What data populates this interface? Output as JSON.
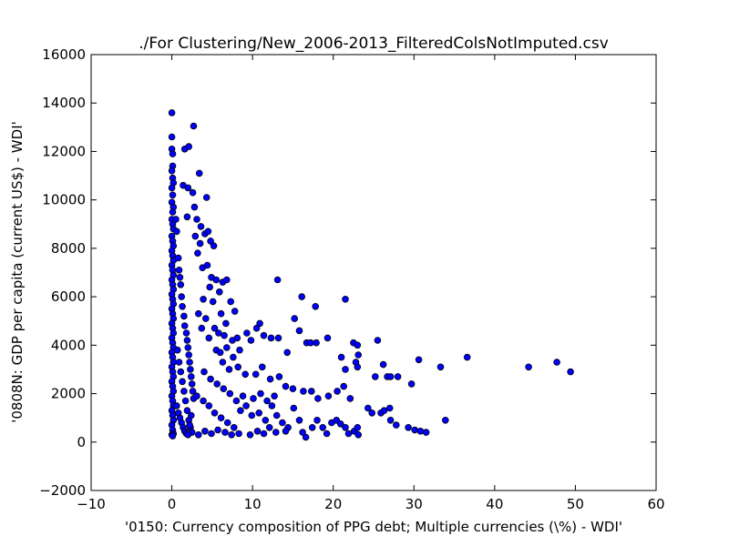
{
  "chart_data": {
    "type": "scatter",
    "title": "./For Clustering/New_2006-2013_FilteredColsNotImputed.csv",
    "xlabel": "'0150: Currency composition of PPG debt; Multiple currencies  (\\%) - WDI'",
    "ylabel": "'0808N: GDP per capita  (current US$) - WDI'",
    "xlim": [
      -10,
      60
    ],
    "ylim": [
      -2000,
      16000
    ],
    "xticks": [
      -10,
      0,
      10,
      20,
      30,
      40,
      50,
      60
    ],
    "yticks": [
      -2000,
      0,
      2000,
      4000,
      6000,
      8000,
      10000,
      12000,
      14000,
      16000
    ],
    "xtick_labels": [
      "−10",
      "0",
      "10",
      "20",
      "30",
      "40",
      "50",
      "60"
    ],
    "ytick_labels": [
      "−2000",
      "0",
      "2000",
      "4000",
      "6000",
      "8000",
      "10000",
      "12000",
      "14000",
      "16000"
    ],
    "marker_color": "#0000ff",
    "marker_edge": "#000000",
    "grid": false,
    "points": [
      [
        0,
        13600
      ],
      [
        0,
        12600
      ],
      [
        0,
        12100
      ],
      [
        0.1,
        11900
      ],
      [
        0.1,
        11400
      ],
      [
        0,
        11200
      ],
      [
        0.1,
        10900
      ],
      [
        0.2,
        10700
      ],
      [
        0,
        10500
      ],
      [
        0.1,
        10200
      ],
      [
        0,
        9900
      ],
      [
        0.2,
        9700
      ],
      [
        0.1,
        9500
      ],
      [
        0,
        9200
      ],
      [
        0.1,
        9000
      ],
      [
        0.2,
        8800
      ],
      [
        0,
        8500
      ],
      [
        0.1,
        8300
      ],
      [
        0.2,
        8100
      ],
      [
        0,
        7900
      ],
      [
        0.1,
        7700
      ],
      [
        0.2,
        7500
      ],
      [
        0,
        7300
      ],
      [
        0.1,
        7100
      ],
      [
        0.2,
        6900
      ],
      [
        0,
        6700
      ],
      [
        0.1,
        6500
      ],
      [
        0.2,
        6300
      ],
      [
        0,
        6100
      ],
      [
        0.1,
        5900
      ],
      [
        0.2,
        5700
      ],
      [
        0,
        5500
      ],
      [
        0.1,
        5300
      ],
      [
        0.2,
        5100
      ],
      [
        0,
        4900
      ],
      [
        0.1,
        4700
      ],
      [
        0.2,
        4500
      ],
      [
        0,
        4300
      ],
      [
        0.1,
        4100
      ],
      [
        0.2,
        3900
      ],
      [
        0,
        3700
      ],
      [
        0.1,
        3500
      ],
      [
        0.2,
        3300
      ],
      [
        0,
        3100
      ],
      [
        0.1,
        2900
      ],
      [
        0.2,
        2700
      ],
      [
        0,
        2500
      ],
      [
        0.1,
        2300
      ],
      [
        0.2,
        2100
      ],
      [
        0,
        1900
      ],
      [
        0.1,
        1700
      ],
      [
        0.2,
        1500
      ],
      [
        0,
        1300
      ],
      [
        0.1,
        1100
      ],
      [
        0.2,
        900
      ],
      [
        0,
        700
      ],
      [
        0.1,
        500
      ],
      [
        0.2,
        350
      ],
      [
        0,
        300
      ],
      [
        0.1,
        250
      ],
      [
        0.5,
        9200
      ],
      [
        0.6,
        8700
      ],
      [
        0.8,
        7600
      ],
      [
        0.9,
        7100
      ],
      [
        1.0,
        6800
      ],
      [
        1.1,
        6500
      ],
      [
        1.2,
        6000
      ],
      [
        1.3,
        5600
      ],
      [
        1.5,
        5200
      ],
      [
        1.6,
        4800
      ],
      [
        1.8,
        4500
      ],
      [
        1.9,
        4200
      ],
      [
        2.0,
        3900
      ],
      [
        2.1,
        3600
      ],
      [
        2.2,
        3300
      ],
      [
        2.3,
        3000
      ],
      [
        2.4,
        2700
      ],
      [
        2.5,
        2400
      ],
      [
        2.6,
        2100
      ],
      [
        2.7,
        1800
      ],
      [
        0.7,
        3800
      ],
      [
        0.9,
        3300
      ],
      [
        1.1,
        2900
      ],
      [
        1.3,
        2500
      ],
      [
        1.5,
        2100
      ],
      [
        1.7,
        1700
      ],
      [
        1.9,
        1300
      ],
      [
        2.1,
        900
      ],
      [
        2.3,
        600
      ],
      [
        2.5,
        400
      ],
      [
        0.6,
        1500
      ],
      [
        0.8,
        1200
      ],
      [
        1.0,
        1000
      ],
      [
        1.2,
        800
      ],
      [
        1.4,
        600
      ],
      [
        1.6,
        450
      ],
      [
        1.8,
        350
      ],
      [
        2.0,
        300
      ],
      [
        2.2,
        700
      ],
      [
        2.4,
        1100
      ],
      [
        1.6,
        12100
      ],
      [
        2.1,
        12200
      ],
      [
        2.7,
        13050
      ],
      [
        3.4,
        11100
      ],
      [
        1.4,
        10600
      ],
      [
        2.0,
        10500
      ],
      [
        2.6,
        10300
      ],
      [
        4.3,
        10100
      ],
      [
        1.9,
        9300
      ],
      [
        2.8,
        9700
      ],
      [
        3.1,
        9200
      ],
      [
        3.6,
        8900
      ],
      [
        4.1,
        8600
      ],
      [
        4.8,
        8300
      ],
      [
        5.2,
        8100
      ],
      [
        3.5,
        8200
      ],
      [
        2.9,
        8500
      ],
      [
        4.5,
        8700
      ],
      [
        3.2,
        7800
      ],
      [
        3.8,
        7200
      ],
      [
        4.4,
        7300
      ],
      [
        4.9,
        6800
      ],
      [
        5.5,
        6700
      ],
      [
        6.3,
        6600
      ],
      [
        6.8,
        6700
      ],
      [
        5.9,
        6200
      ],
      [
        4.7,
        6400
      ],
      [
        3.9,
        5900
      ],
      [
        5.1,
        5800
      ],
      [
        6.1,
        5300
      ],
      [
        7.3,
        5800
      ],
      [
        7.8,
        5400
      ],
      [
        6.7,
        4900
      ],
      [
        5.8,
        4500
      ],
      [
        4.6,
        4300
      ],
      [
        3.7,
        4700
      ],
      [
        3.3,
        5300
      ],
      [
        4.2,
        5100
      ],
      [
        5.3,
        4700
      ],
      [
        6.5,
        4400
      ],
      [
        7.5,
        4200
      ],
      [
        8.1,
        4300
      ],
      [
        9.3,
        4500
      ],
      [
        9.8,
        4200
      ],
      [
        10.5,
        4700
      ],
      [
        10.9,
        4900
      ],
      [
        11.4,
        4400
      ],
      [
        12.3,
        4300
      ],
      [
        13.2,
        4300
      ],
      [
        14.3,
        3700
      ],
      [
        13.1,
        6700
      ],
      [
        16.1,
        6000
      ],
      [
        17.8,
        5600
      ],
      [
        15.2,
        5100
      ],
      [
        15.8,
        4600
      ],
      [
        16.7,
        4100
      ],
      [
        17.2,
        4100
      ],
      [
        17.9,
        4100
      ],
      [
        19.3,
        4300
      ],
      [
        21.5,
        5900
      ],
      [
        21.0,
        3500
      ],
      [
        22.5,
        4100
      ],
      [
        23.0,
        4000
      ],
      [
        23.1,
        3600
      ],
      [
        22.8,
        3300
      ],
      [
        23.0,
        3100
      ],
      [
        21.5,
        3000
      ],
      [
        25.5,
        4200
      ],
      [
        26.2,
        3200
      ],
      [
        25.2,
        2700
      ],
      [
        26.7,
        2700
      ],
      [
        27.1,
        2700
      ],
      [
        28.0,
        2700
      ],
      [
        29.7,
        2400
      ],
      [
        30.6,
        3400
      ],
      [
        33.3,
        3100
      ],
      [
        36.6,
        3500
      ],
      [
        44.2,
        3100
      ],
      [
        47.7,
        3300
      ],
      [
        49.4,
        2900
      ],
      [
        5.5,
        3800
      ],
      [
        6.3,
        3300
      ],
      [
        7.1,
        3000
      ],
      [
        8.2,
        3100
      ],
      [
        9.1,
        2800
      ],
      [
        10.4,
        2800
      ],
      [
        11.2,
        3100
      ],
      [
        12.2,
        2600
      ],
      [
        13.3,
        2700
      ],
      [
        14.1,
        2300
      ],
      [
        15.0,
        2200
      ],
      [
        16.3,
        2100
      ],
      [
        17.3,
        2100
      ],
      [
        18.1,
        1800
      ],
      [
        19.4,
        1900
      ],
      [
        20.5,
        2100
      ],
      [
        21.3,
        2300
      ],
      [
        22.1,
        1800
      ],
      [
        24.3,
        1400
      ],
      [
        24.8,
        1200
      ],
      [
        25.9,
        1200
      ],
      [
        26.3,
        1300
      ],
      [
        27.0,
        1400
      ],
      [
        27.1,
        900
      ],
      [
        27.8,
        700
      ],
      [
        29.3,
        600
      ],
      [
        30.1,
        500
      ],
      [
        30.8,
        450
      ],
      [
        31.5,
        400
      ],
      [
        33.9,
        900
      ],
      [
        3.1,
        1900
      ],
      [
        3.9,
        1700
      ],
      [
        4.6,
        1500
      ],
      [
        5.3,
        1200
      ],
      [
        6.1,
        1000
      ],
      [
        6.9,
        800
      ],
      [
        7.7,
        600
      ],
      [
        8.5,
        1300
      ],
      [
        9.2,
        1500
      ],
      [
        10.1,
        1800
      ],
      [
        10.8,
        1200
      ],
      [
        11.6,
        900
      ],
      [
        12.4,
        1500
      ],
      [
        13.0,
        1100
      ],
      [
        13.7,
        800
      ],
      [
        14.4,
        600
      ],
      [
        15.1,
        1400
      ],
      [
        15.8,
        900
      ],
      [
        16.2,
        400
      ],
      [
        16.6,
        200
      ],
      [
        17.4,
        600
      ],
      [
        18.0,
        900
      ],
      [
        18.7,
        600
      ],
      [
        19.2,
        350
      ],
      [
        19.8,
        800
      ],
      [
        20.4,
        900
      ],
      [
        20.9,
        750
      ],
      [
        21.5,
        600
      ],
      [
        21.9,
        350
      ],
      [
        22.6,
        450
      ],
      [
        23.0,
        600
      ],
      [
        23.1,
        300
      ],
      [
        3.3,
        300
      ],
      [
        4.1,
        450
      ],
      [
        4.9,
        350
      ],
      [
        5.7,
        500
      ],
      [
        6.6,
        400
      ],
      [
        7.4,
        300
      ],
      [
        8.3,
        350
      ],
      [
        9.7,
        300
      ],
      [
        10.6,
        450
      ],
      [
        11.4,
        350
      ],
      [
        12.1,
        600
      ],
      [
        12.9,
        400
      ],
      [
        14.1,
        450
      ],
      [
        8.8,
        1900
      ],
      [
        9.9,
        1100
      ],
      [
        11.0,
        2000
      ],
      [
        11.8,
        1700
      ],
      [
        12.7,
        1900
      ],
      [
        6.0,
        3700
      ],
      [
        6.8,
        3900
      ],
      [
        7.6,
        3500
      ],
      [
        8.4,
        3800
      ],
      [
        4.0,
        2900
      ],
      [
        4.8,
        2600
      ],
      [
        5.6,
        2400
      ],
      [
        6.4,
        2200
      ],
      [
        7.2,
        2000
      ],
      [
        8.0,
        1700
      ]
    ]
  }
}
